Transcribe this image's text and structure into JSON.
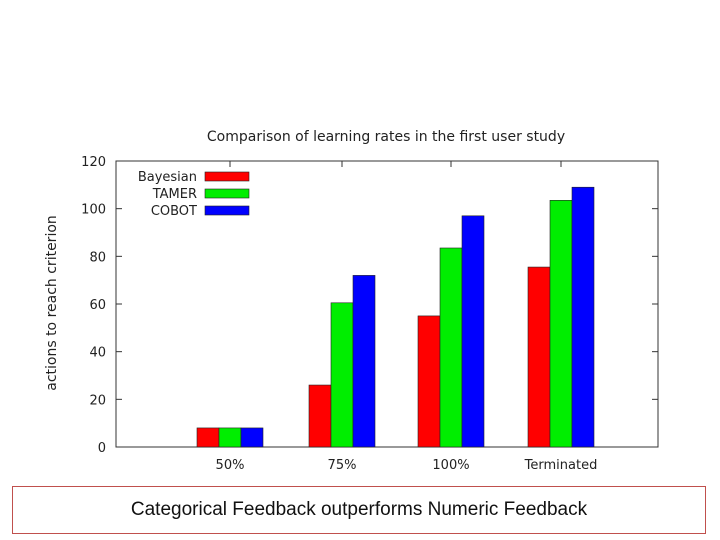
{
  "chart_data": {
    "type": "bar",
    "title": "Comparison of learning rates in the first user study",
    "xlabel": "",
    "ylabel": "actions to reach criterion",
    "ylim": [
      0,
      120
    ],
    "yticks": [
      0,
      20,
      40,
      60,
      80,
      100,
      120
    ],
    "categories": [
      "50%",
      "75%",
      "100%",
      "Terminated"
    ],
    "series": [
      {
        "name": "Bayesian",
        "color": "#ff0000",
        "values": [
          8,
          26,
          55,
          75.5
        ]
      },
      {
        "name": "TAMER",
        "color": "#00ee00",
        "values": [
          8,
          60.5,
          83.5,
          103.5
        ]
      },
      {
        "name": "COBOT",
        "color": "#0000ff",
        "values": [
          8,
          72,
          97,
          109
        ]
      }
    ],
    "legend_position": "top-left",
    "grid": false
  },
  "caption": "Categorical Feedback outperforms Numeric Feedback"
}
